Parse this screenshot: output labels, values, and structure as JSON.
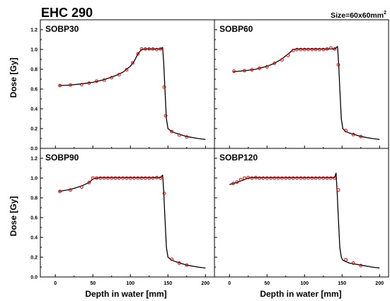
{
  "figure": {
    "title": "EHC 290",
    "size_label": "Size=60x60mm",
    "size_label_sup": "2",
    "ylabel": "Dose [Gy]",
    "xlabel": "Depth in water [mm]"
  },
  "axes": {
    "x_range": [
      -20,
      212
    ],
    "y_range": [
      0,
      1.3
    ],
    "x_ticks": [
      0,
      50,
      100,
      150,
      200
    ],
    "y_ticks": [
      0.0,
      0.2,
      0.4,
      0.6,
      0.8,
      1.0,
      1.2
    ],
    "y_tick_labels": [
      "0.0",
      "0.2",
      "0.4",
      "0.6",
      "0.8",
      "1.0",
      "1.2"
    ]
  },
  "colors": {
    "curve": "#000000",
    "marker": "#e00000"
  },
  "chart_data": [
    {
      "type": "scatter",
      "title": "SOBP30",
      "series": [
        {
          "kind": "curve",
          "x": [
            5,
            20,
            35,
            50,
            65,
            80,
            90,
            100,
            105,
            110,
            115,
            120,
            130,
            140,
            143,
            144.5,
            146,
            148,
            150,
            155,
            160,
            175,
            190,
            200
          ],
          "y": [
            0.635,
            0.64,
            0.652,
            0.668,
            0.695,
            0.735,
            0.77,
            0.83,
            0.88,
            0.955,
            1.0,
            1.005,
            1.005,
            1.005,
            1.02,
            0.85,
            0.6,
            0.3,
            0.2,
            0.17,
            0.155,
            0.12,
            0.1,
            0.09
          ]
        },
        {
          "kind": "markers",
          "x": [
            6,
            20,
            35,
            45,
            55,
            65,
            75,
            85,
            95,
            103,
            110,
            115,
            120,
            125,
            130,
            135,
            140,
            145,
            147,
            155,
            165,
            175
          ],
          "y": [
            0.635,
            0.64,
            0.645,
            0.66,
            0.68,
            0.69,
            0.715,
            0.745,
            0.795,
            0.865,
            0.955,
            1.005,
            1.005,
            1.005,
            1.005,
            1.0,
            1.005,
            0.62,
            0.33,
            0.17,
            0.135,
            0.115
          ]
        }
      ]
    },
    {
      "type": "scatter",
      "title": "SOBP60",
      "series": [
        {
          "kind": "curve",
          "x": [
            5,
            20,
            35,
            50,
            60,
            70,
            80,
            85,
            90,
            100,
            120,
            140,
            144,
            145.5,
            147,
            149,
            151,
            155,
            160,
            175,
            190,
            200
          ],
          "y": [
            0.775,
            0.785,
            0.8,
            0.83,
            0.86,
            0.905,
            0.965,
            1.0,
            1.005,
            1.005,
            1.005,
            1.005,
            1.03,
            0.85,
            0.6,
            0.3,
            0.2,
            0.17,
            0.155,
            0.12,
            0.1,
            0.09
          ]
        },
        {
          "kind": "markers",
          "x": [
            6,
            20,
            30,
            40,
            50,
            60,
            70,
            78,
            85,
            90,
            95,
            100,
            105,
            110,
            115,
            120,
            125,
            130,
            135,
            140,
            145,
            155,
            165,
            175
          ],
          "y": [
            0.78,
            0.785,
            0.795,
            0.81,
            0.825,
            0.86,
            0.895,
            0.94,
            0.99,
            1.0,
            1.0,
            1.0,
            1.0,
            1.0,
            1.0,
            1.0,
            1.0,
            1.005,
            1.015,
            1.005,
            0.845,
            0.18,
            0.14,
            0.12
          ]
        }
      ]
    },
    {
      "type": "scatter",
      "title": "SOBP90",
      "series": [
        {
          "kind": "curve",
          "x": [
            5,
            20,
            35,
            45,
            50,
            55,
            60,
            80,
            100,
            120,
            140,
            143,
            144.5,
            146,
            148,
            150,
            155,
            160,
            175,
            190,
            200
          ],
          "y": [
            0.865,
            0.885,
            0.92,
            0.955,
            0.99,
            1.0,
            1.005,
            1.005,
            1.005,
            1.005,
            1.005,
            1.03,
            0.85,
            0.6,
            0.3,
            0.2,
            0.17,
            0.155,
            0.12,
            0.1,
            0.09
          ]
        },
        {
          "kind": "markers",
          "x": [
            6,
            20,
            35,
            45,
            50,
            55,
            60,
            65,
            70,
            75,
            80,
            85,
            90,
            95,
            100,
            105,
            110,
            115,
            120,
            125,
            130,
            135,
            140,
            145,
            155,
            165,
            175
          ],
          "y": [
            0.865,
            0.88,
            0.91,
            0.955,
            1.0,
            1.0,
            1.0,
            1.0,
            1.0,
            1.0,
            1.0,
            1.0,
            1.0,
            1.0,
            1.0,
            1.0,
            1.0,
            1.0,
            1.0,
            1.0,
            1.0,
            1.005,
            1.0,
            0.845,
            0.18,
            0.14,
            0.12
          ]
        }
      ]
    },
    {
      "type": "scatter",
      "title": "SOBP120",
      "series": [
        {
          "kind": "curve",
          "x": [
            0,
            10,
            20,
            25,
            30,
            40,
            60,
            80,
            100,
            120,
            140,
            142,
            143.5,
            145,
            147,
            149,
            151,
            155,
            160,
            175,
            190,
            200
          ],
          "y": [
            0.935,
            0.955,
            0.985,
            1.0,
            1.005,
            1.005,
            1.005,
            1.005,
            1.005,
            1.005,
            1.005,
            1.05,
            0.85,
            0.6,
            0.3,
            0.2,
            0.17,
            0.155,
            0.14,
            0.12,
            0.1,
            0.09
          ]
        },
        {
          "kind": "markers",
          "x": [
            5,
            10,
            15,
            20,
            25,
            30,
            35,
            40,
            45,
            50,
            55,
            60,
            65,
            70,
            75,
            80,
            85,
            90,
            95,
            100,
            105,
            110,
            115,
            120,
            125,
            130,
            135,
            140,
            145,
            155,
            165,
            175
          ],
          "y": [
            0.945,
            0.96,
            0.985,
            1.0,
            1.005,
            1.0,
            1.005,
            1.0,
            1.0,
            1.0,
            1.0,
            1.0,
            1.0,
            1.0,
            1.0,
            1.0,
            1.0,
            1.0,
            1.0,
            1.0,
            1.0,
            1.0,
            1.0,
            1.0,
            1.0,
            1.0,
            1.0,
            1.0,
            0.88,
            0.175,
            0.14,
            0.115
          ]
        }
      ]
    }
  ]
}
